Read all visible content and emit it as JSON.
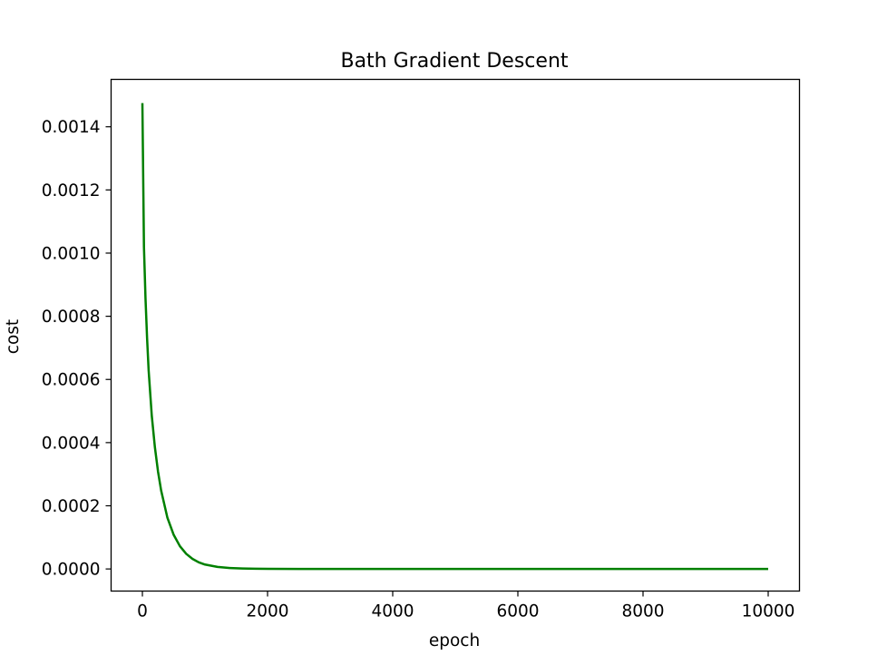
{
  "chart_data": {
    "type": "line",
    "title": "Bath Gradient Descent",
    "xlabel": "epoch",
    "ylabel": "cost",
    "xlim": [
      -500,
      10500
    ],
    "ylim": [
      -7e-05,
      0.00155
    ],
    "xticks": [
      0,
      2000,
      4000,
      6000,
      8000,
      10000
    ],
    "xtick_labels": [
      "0",
      "2000",
      "4000",
      "6000",
      "8000",
      "10000"
    ],
    "yticks": [
      0,
      0.0002,
      0.0004,
      0.0006,
      0.0008,
      0.001,
      0.0012,
      0.0014
    ],
    "ytick_labels": [
      "0.0000",
      "0.0002",
      "0.0004",
      "0.0006",
      "0.0008",
      "0.0010",
      "0.0012",
      "0.0014"
    ],
    "grid": false,
    "series": [
      {
        "color": "#008000",
        "x": [
          0,
          25,
          50,
          75,
          100,
          150,
          200,
          250,
          300,
          400,
          500,
          600,
          700,
          800,
          900,
          1000,
          1200,
          1400,
          1600,
          1800,
          2000,
          2500,
          3000,
          4000,
          5000,
          6000,
          7000,
          8000,
          9000,
          10000
        ],
        "y": [
          0.001475,
          0.00102,
          0.000855,
          0.00073,
          0.000628,
          0.000485,
          0.000385,
          0.000308,
          0.000248,
          0.000162,
          0.000108,
          7.2e-05,
          4.8e-05,
          3.2e-05,
          2.1e-05,
          1.4e-05,
          6.5e-06,
          3e-06,
          1.4e-06,
          7e-07,
          3e-07,
          5e-08,
          1e-08,
          0,
          0,
          0,
          0,
          0,
          0,
          0
        ]
      }
    ]
  }
}
